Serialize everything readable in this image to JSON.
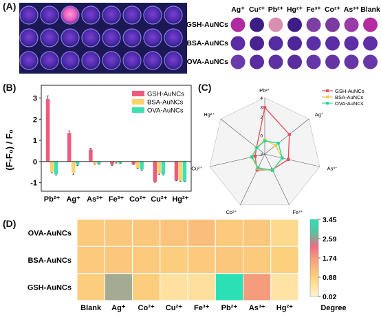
{
  "panels": {
    "a": {
      "label": "(A)",
      "columns": [
        "Ag⁺",
        "Cu²⁺",
        "Pb²⁺",
        "Hg²⁺",
        "Fe³⁺",
        "Co²⁺",
        "As³⁺",
        "Blank"
      ],
      "rows": [
        "GSH-AuNCs",
        "BSA-AuNCs",
        "OVA-AuNCs"
      ],
      "swatches": [
        [
          "#b02aa0",
          "#3c1f86",
          "#d98fb1",
          "#3e1c85",
          "#7d3fa3",
          "#7a3aa0",
          "#9b3ba7",
          "#b52ca1"
        ],
        [
          "#5c2ba6",
          "#4a2391",
          "#542ba0",
          "#4e2699",
          "#5d2fa6",
          "#5c2da4",
          "#5d2ea5",
          "#5f2fa7"
        ],
        [
          "#6a3cab",
          "#5a2c9f",
          "#5e30a1",
          "#5a2d9f",
          "#6536a7",
          "#6434a5",
          "#6636a8",
          "#6737a9"
        ]
      ]
    },
    "b": {
      "label": "(B)",
      "chart_data": {
        "type": "bar",
        "categories": [
          "Pb²⁺",
          "Ag⁺",
          "As³⁺",
          "Fe³⁺",
          "Co²⁺",
          "Cu²⁺",
          "Hg²⁺"
        ],
        "series": [
          {
            "name": "GSH-AuNCs",
            "color": "#ef5b7b",
            "values": [
              2.95,
              1.35,
              0.57,
              -0.15,
              -0.12,
              -0.95,
              -0.88
            ],
            "errors": [
              0.15,
              0.1,
              0.06,
              0.03,
              0.02,
              0.03,
              0.02
            ]
          },
          {
            "name": "BSA-AuNCs",
            "color": "#fbd36b",
            "values": [
              -0.48,
              -0.52,
              -0.1,
              -0.05,
              -0.3,
              -0.55,
              -0.9
            ],
            "errors": [
              0.05,
              0.1,
              0.03,
              0.02,
              0.05,
              0.05,
              0.03
            ]
          },
          {
            "name": "OVA-AuNCs",
            "color": "#3ee0b2",
            "values": [
              -0.6,
              -0.15,
              -0.1,
              -0.08,
              -0.38,
              -0.6,
              -0.93
            ],
            "errors": [
              0.04,
              0.03,
              0.03,
              0.02,
              0.04,
              0.04,
              0.02
            ]
          }
        ],
        "ylabel": "(F-F₀) / F₀",
        "ylim": [
          -1.4,
          3.6
        ],
        "yticks": [
          -1,
          0,
          1,
          2,
          3
        ],
        "legend": "top-right"
      }
    },
    "c": {
      "label": "(C)",
      "chart_data": {
        "type": "radar",
        "axes": [
          "Pb²⁺",
          "Ag⁺",
          "As³⁺",
          "Fe³⁺",
          "Co²⁺",
          "Cu²⁺",
          "Hg²⁺"
        ],
        "rlim": [
          -2,
          4
        ],
        "rticks": [
          -2,
          0,
          2,
          4
        ],
        "ring_labels": [
          "-2",
          "0",
          "2",
          "3",
          "4"
        ],
        "series": [
          {
            "name": "GSH-AuNCs",
            "color": "#e8505b",
            "values": [
              2.95,
              1.35,
              0.57,
              -0.15,
              -0.12,
              -0.95,
              -0.88
            ]
          },
          {
            "name": "BSA-AuNCs",
            "color": "#f7c948",
            "values": [
              -0.48,
              -0.52,
              -0.1,
              -0.05,
              -0.3,
              -0.55,
              -0.9
            ]
          },
          {
            "name": "OVA-AuNCs",
            "color": "#2bd39c",
            "values": [
              -0.6,
              -0.15,
              -0.1,
              -0.08,
              -0.38,
              -0.6,
              -0.93
            ]
          }
        ],
        "legend": "top-right"
      }
    },
    "d": {
      "label": "(D)",
      "chart_data": {
        "type": "heatmap",
        "x": [
          "Blank",
          "Ag⁺",
          "Co²⁺",
          "Cu²⁺",
          "Fe³⁺",
          "Pb²⁺",
          "As³⁺",
          "Hg²⁺"
        ],
        "y": [
          "OVA-AuNCs",
          "BSA-AuNCs",
          "GSH-AuNCs"
        ],
        "values": [
          [
            1.0,
            1.05,
            1.05,
            1.1,
            1.2,
            1.0,
            1.05,
            0.7
          ],
          [
            1.0,
            1.05,
            1.0,
            0.95,
            1.0,
            1.05,
            1.0,
            0.9
          ],
          [
            0.95,
            2.4,
            0.95,
            0.5,
            0.55,
            3.45,
            1.7,
            0.45
          ]
        ],
        "colorbar": {
          "min": 0.02,
          "max": 3.45,
          "ticks": [
            "3.45",
            "2.59",
            "1.74",
            "0.88",
            "0.02"
          ],
          "label": "Degree"
        },
        "colors": [
          "#fff4cf",
          "#fdd27c",
          "#f59a7d",
          "#ef6b83",
          "#5dbf9c",
          "#2ce0b6"
        ]
      }
    }
  }
}
